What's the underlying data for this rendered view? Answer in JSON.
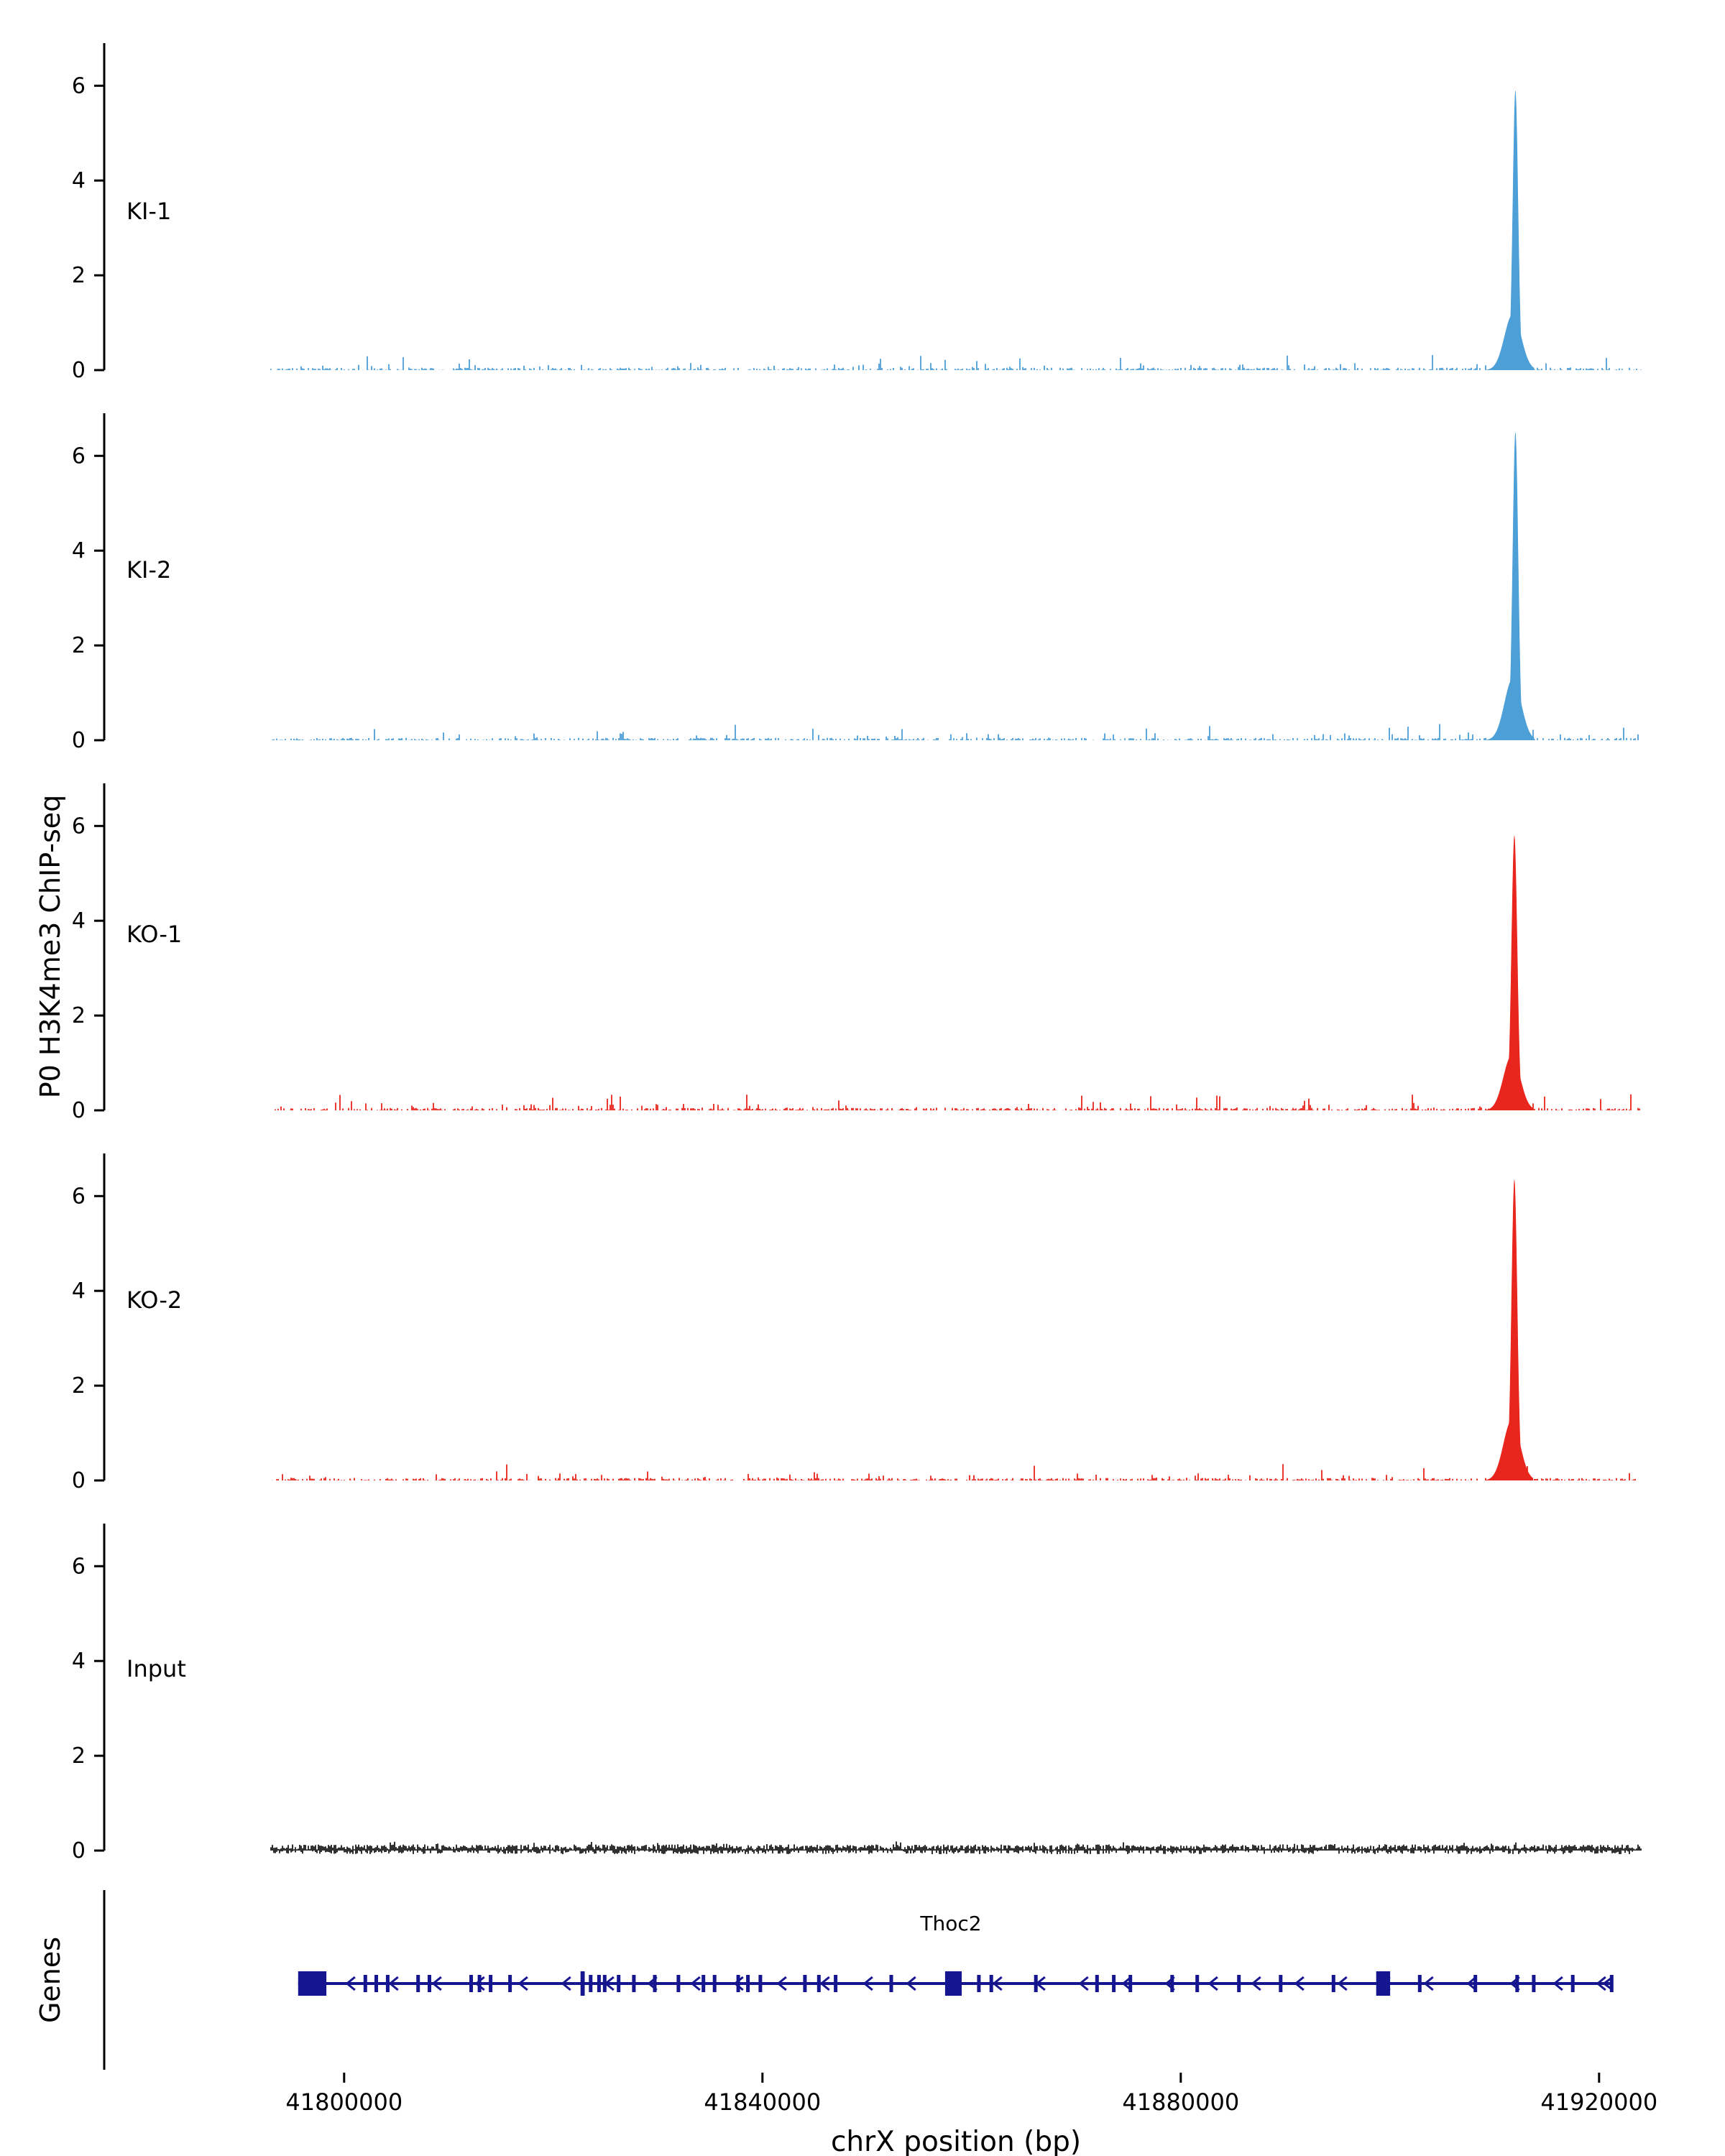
{
  "chart_data": {
    "type": "area",
    "title": "",
    "x_title": "chrX position (bp)",
    "y_title": "P0 H3K4me3 ChIP-seq",
    "genes_title": "Genes",
    "xlim": [
      41793000,
      41924000
    ],
    "ylim": [
      0,
      6.9
    ],
    "x_ticks": [
      41800000,
      41840000,
      41880000,
      41920000
    ],
    "y_ticks": [
      0,
      2,
      4,
      6
    ],
    "tracks": [
      {
        "name": "KI-1",
        "color": "#4d9fd8",
        "dense": false,
        "noise_seed": 11,
        "peak": {
          "center": 41912000,
          "height": 5.9,
          "sigma": 260
        }
      },
      {
        "name": "KI-2",
        "color": "#4d9fd8",
        "dense": false,
        "noise_seed": 22,
        "peak": {
          "center": 41912000,
          "height": 6.5,
          "sigma": 270
        }
      },
      {
        "name": "KO-1",
        "color": "#e8261d",
        "dense": false,
        "noise_seed": 33,
        "peak": {
          "center": 41911900,
          "height": 5.8,
          "sigma": 280
        }
      },
      {
        "name": "KO-2",
        "color": "#e8261d",
        "dense": false,
        "noise_seed": 44,
        "peak": {
          "center": 41911900,
          "height": 6.35,
          "sigma": 280
        }
      },
      {
        "name": "Input",
        "color": "#1a1a1a",
        "dense": true,
        "noise_seed": 55,
        "peak": null
      }
    ],
    "gene": {
      "name": "Thoc2",
      "strand": "-",
      "color": "#15158f",
      "start": 41795600,
      "end": 41921300,
      "exons": [
        [
          41795600,
          41798300,
          1
        ],
        [
          41801850,
          41802100,
          0
        ],
        [
          41802900,
          41803150,
          0
        ],
        [
          41803990,
          41804240,
          0
        ],
        [
          41806900,
          41807150,
          0
        ],
        [
          41807980,
          41808230,
          0
        ],
        [
          41811970,
          41812220,
          0
        ],
        [
          41812770,
          41813020,
          0
        ],
        [
          41813830,
          41814080,
          0
        ],
        [
          41815690,
          41815940,
          0
        ],
        [
          41822600,
          41823000,
          1
        ],
        [
          41823400,
          41823650,
          0
        ],
        [
          41824200,
          41824450,
          0
        ],
        [
          41824740,
          41824990,
          0
        ],
        [
          41826070,
          41826320,
          0
        ],
        [
          41827530,
          41827780,
          0
        ],
        [
          41829530,
          41829780,
          0
        ],
        [
          41831790,
          41832040,
          0
        ],
        [
          41834180,
          41834430,
          0
        ],
        [
          41835250,
          41835500,
          0
        ],
        [
          41837510,
          41837760,
          0
        ],
        [
          41838440,
          41838690,
          0
        ],
        [
          41839630,
          41839880,
          0
        ],
        [
          41843890,
          41844140,
          0
        ],
        [
          41845220,
          41845470,
          0
        ],
        [
          41846820,
          41847070,
          0
        ],
        [
          41852140,
          41852390,
          0
        ],
        [
          41857460,
          41859050,
          1
        ],
        [
          41860520,
          41860770,
          0
        ],
        [
          41861710,
          41861960,
          0
        ],
        [
          41865970,
          41866220,
          0
        ],
        [
          41871820,
          41872070,
          0
        ],
        [
          41873420,
          41873670,
          0
        ],
        [
          41875010,
          41875260,
          0
        ],
        [
          41879000,
          41879250,
          0
        ],
        [
          41881400,
          41881650,
          0
        ],
        [
          41885390,
          41885640,
          0
        ],
        [
          41889380,
          41889630,
          0
        ],
        [
          41894430,
          41894680,
          0
        ],
        [
          41898690,
          41900020,
          1
        ],
        [
          41902680,
          41902930,
          0
        ],
        [
          41908000,
          41908250,
          0
        ],
        [
          41911990,
          41912240,
          0
        ],
        [
          41913580,
          41913830,
          0
        ],
        [
          41917310,
          41917560,
          0
        ],
        [
          41921030,
          41921300,
          0
        ]
      ]
    }
  }
}
